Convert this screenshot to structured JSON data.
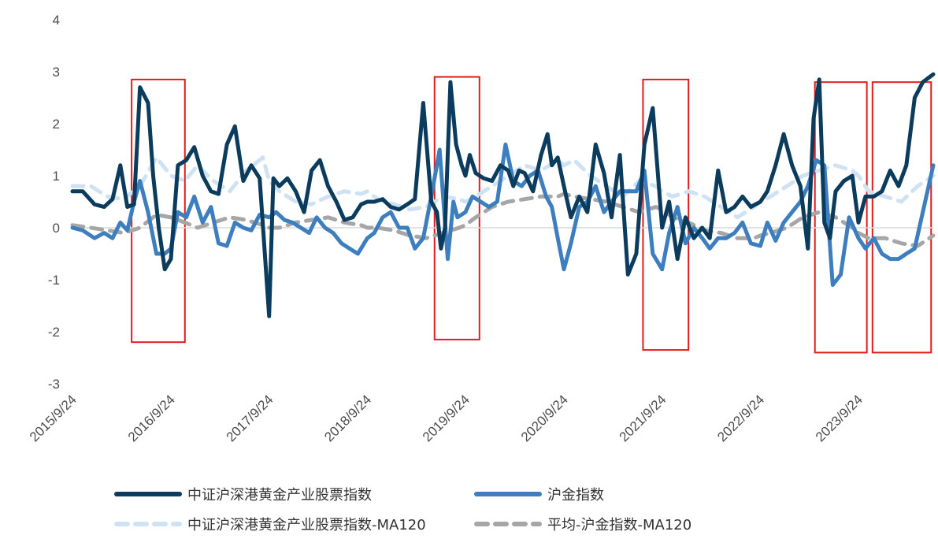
{
  "chart_data": {
    "type": "line",
    "ylim": [
      -3,
      4
    ],
    "yticks": [
      -3,
      -2,
      -1,
      0,
      1,
      2,
      3,
      4
    ],
    "ytick_labels": [
      "-3",
      "-2",
      "-1",
      "0",
      "1",
      "2",
      "3",
      "4"
    ],
    "xlim": [
      "2015/9/24",
      "2024/6/28"
    ],
    "xticks": [
      "2015/9/24",
      "2016/9/24",
      "2017/9/24",
      "2018/9/24",
      "2019/9/24",
      "2020/9/24",
      "2021/9/24",
      "2022/9/24",
      "2023/9/24"
    ],
    "grid": false,
    "legend_position": "bottom",
    "series": [
      {
        "name": "中证沪深港黄金产业股票指数",
        "color": "#0b3c5d",
        "style": "solid",
        "x": [
          "2015/9/24",
          "2015/11/1",
          "2015/12/15",
          "2016/1/20",
          "2016/2/20",
          "2016/3/20",
          "2016/4/15",
          "2016/5/10",
          "2016/6/1",
          "2016/7/1",
          "2016/7/20",
          "2016/8/10",
          "2016/9/1",
          "2016/9/24",
          "2016/10/20",
          "2016/11/20",
          "2016/12/20",
          "2017/1/20",
          "2017/2/20",
          "2017/3/20",
          "2017/4/20",
          "2017/5/20",
          "2017/6/20",
          "2017/7/20",
          "2017/8/20",
          "2017/9/24",
          "2017/10/10",
          "2017/11/1",
          "2017/12/1",
          "2018/1/1",
          "2018/2/1",
          "2018/3/1",
          "2018/4/1",
          "2018/5/1",
          "2018/6/1",
          "2018/7/1",
          "2018/8/1",
          "2018/9/1",
          "2018/9/24",
          "2018/10/20",
          "2018/11/20",
          "2018/12/20",
          "2019/1/20",
          "2019/2/20",
          "2019/3/20",
          "2019/4/20",
          "2019/5/20",
          "2019/6/10",
          "2019/6/25",
          "2019/7/10",
          "2019/7/30",
          "2019/8/20",
          "2019/9/10",
          "2019/9/24",
          "2019/10/10",
          "2019/11/1",
          "2019/12/1",
          "2020/1/1",
          "2020/2/1",
          "2020/3/1",
          "2020/3/20",
          "2020/4/10",
          "2020/5/1",
          "2020/6/1",
          "2020/7/1",
          "2020/7/25",
          "2020/8/10",
          "2020/9/1",
          "2020/9/24",
          "2020/10/20",
          "2020/11/20",
          "2020/12/20",
          "2021/1/20",
          "2021/2/20",
          "2021/3/20",
          "2021/4/20",
          "2021/5/20",
          "2021/6/20",
          "2021/7/20",
          "2021/8/20",
          "2021/9/24",
          "2021/10/20",
          "2021/11/20",
          "2021/12/20",
          "2022/1/20",
          "2022/2/20",
          "2022/3/20",
          "2022/4/20",
          "2022/5/20",
          "2022/6/20",
          "2022/7/20",
          "2022/8/20",
          "2022/9/24",
          "2022/10/20",
          "2022/11/20",
          "2022/12/20",
          "2023/1/20",
          "2023/2/20",
          "2023/3/20",
          "2023/4/10",
          "2023/5/1",
          "2023/5/20",
          "2023/6/10",
          "2023/7/1",
          "2023/8/1",
          "2023/9/1",
          "2023/9/24",
          "2023/10/20",
          "2023/11/20",
          "2023/12/20",
          "2024/1/20",
          "2024/2/20",
          "2024/3/20",
          "2024/4/20",
          "2024/5/20",
          "2024/6/28"
        ],
        "y": [
          0.7,
          0.7,
          0.45,
          0.4,
          0.55,
          1.2,
          0.4,
          0.45,
          2.7,
          2.4,
          1.0,
          0.0,
          -0.8,
          -0.6,
          1.2,
          1.3,
          1.55,
          1.0,
          0.7,
          0.65,
          1.6,
          1.95,
          0.9,
          1.2,
          0.95,
          -1.7,
          0.95,
          0.8,
          0.95,
          0.7,
          0.3,
          1.1,
          1.3,
          0.8,
          0.5,
          0.15,
          0.2,
          0.45,
          0.5,
          0.5,
          0.55,
          0.4,
          0.35,
          0.45,
          0.55,
          2.4,
          0.5,
          0.3,
          -0.4,
          0.0,
          2.8,
          1.6,
          1.2,
          1.0,
          1.4,
          1.05,
          0.95,
          0.9,
          1.2,
          1.1,
          0.8,
          1.1,
          1.05,
          0.7,
          1.4,
          1.8,
          1.2,
          1.35,
          0.8,
          0.2,
          0.6,
          0.3,
          1.6,
          1.05,
          0.2,
          1.4,
          -0.9,
          -0.5,
          1.6,
          2.3,
          0.0,
          0.5,
          -0.6,
          0.2,
          -0.2,
          0.0,
          -0.2,
          1.1,
          0.3,
          0.4,
          0.6,
          0.4,
          0.5,
          0.7,
          1.2,
          1.8,
          1.2,
          0.8,
          -0.4,
          2.1,
          2.85,
          0.1,
          -0.2,
          0.7,
          0.9,
          1.0,
          0.1,
          0.6,
          0.6,
          0.7,
          1.1,
          0.8,
          1.2,
          2.5,
          2.8,
          2.95
        ]
      },
      {
        "name": "沪金指数",
        "color": "#3d7ebf",
        "style": "solid",
        "x": [
          "2015/9/24",
          "2015/11/1",
          "2015/12/15",
          "2016/1/20",
          "2016/2/20",
          "2016/3/20",
          "2016/4/15",
          "2016/5/10",
          "2016/6/1",
          "2016/7/1",
          "2016/8/1",
          "2016/9/1",
          "2016/9/24",
          "2016/10/20",
          "2016/11/20",
          "2016/12/20",
          "2017/1/20",
          "2017/2/20",
          "2017/3/20",
          "2017/4/20",
          "2017/5/20",
          "2017/6/20",
          "2017/7/20",
          "2017/8/20",
          "2017/9/24",
          "2017/10/20",
          "2017/11/20",
          "2017/12/20",
          "2018/1/20",
          "2018/2/20",
          "2018/3/20",
          "2018/4/20",
          "2018/5/20",
          "2018/6/20",
          "2018/7/20",
          "2018/8/20",
          "2018/9/24",
          "2018/10/20",
          "2018/11/20",
          "2018/12/20",
          "2019/1/20",
          "2019/2/20",
          "2019/3/20",
          "2019/4/20",
          "2019/5/20",
          "2019/6/20",
          "2019/7/20",
          "2019/8/10",
          "2019/8/25",
          "2019/9/24",
          "2019/10/20",
          "2019/11/20",
          "2019/12/20",
          "2020/1/20",
          "2020/2/20",
          "2020/3/20",
          "2020/4/20",
          "2020/5/20",
          "2020/6/20",
          "2020/7/20",
          "2020/8/10",
          "2020/9/1",
          "2020/9/24",
          "2020/10/20",
          "2020/11/20",
          "2020/12/20",
          "2021/1/20",
          "2021/2/20",
          "2021/3/20",
          "2021/4/20",
          "2021/5/20",
          "2021/6/20",
          "2021/7/20",
          "2021/8/20",
          "2021/9/24",
          "2021/10/20",
          "2021/11/20",
          "2021/12/20",
          "2022/1/20",
          "2022/2/20",
          "2022/3/20",
          "2022/4/20",
          "2022/5/20",
          "2022/6/20",
          "2022/7/20",
          "2022/8/20",
          "2022/9/24",
          "2022/10/20",
          "2022/11/20",
          "2022/12/20",
          "2023/1/20",
          "2023/2/20",
          "2023/3/20",
          "2023/4/20",
          "2023/5/20",
          "2023/6/20",
          "2023/7/20",
          "2023/8/20",
          "2023/9/24",
          "2023/10/20",
          "2023/11/20",
          "2023/12/20",
          "2024/1/20",
          "2024/2/20",
          "2024/3/20",
          "2024/4/20",
          "2024/5/20",
          "2024/6/28"
        ],
        "y": [
          0.0,
          -0.05,
          -0.2,
          -0.1,
          -0.2,
          0.1,
          -0.05,
          0.5,
          0.9,
          0.3,
          -0.5,
          -0.5,
          -0.4,
          0.3,
          0.2,
          0.6,
          0.1,
          0.4,
          -0.3,
          -0.35,
          0.1,
          0.0,
          -0.05,
          0.25,
          0.2,
          0.3,
          0.15,
          0.1,
          0.0,
          -0.1,
          0.2,
          0.0,
          -0.1,
          -0.3,
          -0.4,
          -0.5,
          -0.2,
          -0.1,
          0.2,
          0.3,
          0.0,
          0.0,
          -0.4,
          -0.2,
          0.6,
          1.5,
          -0.6,
          0.5,
          0.2,
          0.3,
          0.6,
          0.5,
          0.4,
          0.5,
          1.6,
          0.9,
          0.8,
          1.0,
          1.1,
          0.6,
          0.4,
          -0.2,
          -0.8,
          -0.3,
          0.4,
          0.5,
          0.8,
          0.3,
          0.5,
          0.7,
          0.7,
          0.7,
          1.1,
          -0.5,
          -0.8,
          -0.1,
          0.4,
          -0.3,
          0.0,
          -0.2,
          -0.4,
          -0.2,
          -0.2,
          -0.1,
          0.1,
          -0.3,
          -0.35,
          0.1,
          -0.25,
          0.1,
          0.3,
          0.5,
          0.8,
          1.3,
          1.2,
          -1.1,
          -0.9,
          0.2,
          -0.2,
          -0.4,
          -0.2,
          -0.5,
          -0.6,
          -0.6,
          -0.5,
          -0.4,
          0.3,
          1.2
        ]
      },
      {
        "name": "中证沪深港黄金产业股票指数-MA120",
        "color": "#cfe2f3",
        "style": "dashed",
        "x": [
          "2015/9/24",
          "2015/12/1",
          "2016/2/1",
          "2016/4/1",
          "2016/6/1",
          "2016/8/1",
          "2016/9/24",
          "2016/11/15",
          "2017/1/1",
          "2017/3/1",
          "2017/5/1",
          "2017/7/1",
          "2017/9/1",
          "2017/9/24",
          "2017/11/1",
          "2018/1/1",
          "2018/3/1",
          "2018/5/1",
          "2018/7/1",
          "2018/9/1",
          "2018/9/24",
          "2018/11/1",
          "2019/1/1",
          "2019/3/1",
          "2019/5/1",
          "2019/7/1",
          "2019/9/1",
          "2019/9/24",
          "2019/11/1",
          "2020/1/1",
          "2020/3/1",
          "2020/5/1",
          "2020/7/1",
          "2020/9/1",
          "2020/9/24",
          "2020/11/1",
          "2021/1/1",
          "2021/3/1",
          "2021/5/1",
          "2021/7/1",
          "2021/9/1",
          "2021/9/24",
          "2021/11/1",
          "2022/1/1",
          "2022/3/1",
          "2022/5/1",
          "2022/7/1",
          "2022/9/1",
          "2022/9/24",
          "2022/11/1",
          "2023/1/1",
          "2023/3/1",
          "2023/5/1",
          "2023/7/1",
          "2023/9/1",
          "2023/9/24",
          "2023/11/1",
          "2024/1/1",
          "2024/3/1",
          "2024/5/1",
          "2024/6/28"
        ],
        "y": [
          0.8,
          0.8,
          0.6,
          0.55,
          0.8,
          1.35,
          1.0,
          0.9,
          1.2,
          0.9,
          0.7,
          1.1,
          1.35,
          0.9,
          0.7,
          0.5,
          0.45,
          0.6,
          0.7,
          0.65,
          0.7,
          0.55,
          0.45,
          0.35,
          0.4,
          0.6,
          0.55,
          0.5,
          0.6,
          0.8,
          1.0,
          1.2,
          1.1,
          1.3,
          1.2,
          1.3,
          1.0,
          0.8,
          0.6,
          0.9,
          0.8,
          0.7,
          0.6,
          0.7,
          0.6,
          0.4,
          0.2,
          0.4,
          0.5,
          0.6,
          0.8,
          1.0,
          1.1,
          1.2,
          1.1,
          1.0,
          0.7,
          0.6,
          0.5,
          0.8,
          1.0
        ]
      },
      {
        "name": "平均-沪金指数-MA120",
        "color": "#a6a6a6",
        "style": "dashed",
        "x": [
          "2015/9/24",
          "2015/12/1",
          "2016/2/1",
          "2016/4/1",
          "2016/6/1",
          "2016/8/1",
          "2016/9/24",
          "2016/11/15",
          "2017/1/1",
          "2017/3/1",
          "2017/5/1",
          "2017/7/1",
          "2017/9/1",
          "2017/9/24",
          "2017/11/1",
          "2018/1/1",
          "2018/3/1",
          "2018/5/1",
          "2018/7/1",
          "2018/9/1",
          "2018/9/24",
          "2018/11/1",
          "2019/1/1",
          "2019/3/1",
          "2019/5/1",
          "2019/7/1",
          "2019/9/1",
          "2019/9/24",
          "2019/11/1",
          "2020/1/1",
          "2020/3/1",
          "2020/5/1",
          "2020/7/1",
          "2020/9/1",
          "2020/9/24",
          "2020/11/1",
          "2021/1/1",
          "2021/3/1",
          "2021/5/1",
          "2021/7/1",
          "2021/9/1",
          "2021/9/24",
          "2021/11/1",
          "2022/1/1",
          "2022/3/1",
          "2022/5/1",
          "2022/7/1",
          "2022/9/1",
          "2022/9/24",
          "2022/11/1",
          "2023/1/1",
          "2023/3/1",
          "2023/5/1",
          "2023/7/1",
          "2023/9/1",
          "2023/9/24",
          "2023/11/1",
          "2024/1/1",
          "2024/3/1",
          "2024/5/1",
          "2024/6/28"
        ],
        "y": [
          0.05,
          0.0,
          -0.05,
          -0.1,
          0.0,
          0.25,
          0.2,
          0.1,
          0.0,
          0.1,
          0.2,
          0.15,
          0.05,
          0.0,
          0.0,
          0.1,
          0.15,
          0.2,
          0.1,
          0.05,
          0.0,
          0.0,
          -0.05,
          -0.15,
          -0.2,
          -0.1,
          0.0,
          0.05,
          0.2,
          0.4,
          0.5,
          0.55,
          0.6,
          0.6,
          0.65,
          0.6,
          0.55,
          0.5,
          0.4,
          0.3,
          0.4,
          0.35,
          0.2,
          0.1,
          -0.05,
          -0.1,
          -0.2,
          -0.2,
          -0.15,
          -0.1,
          0.0,
          0.2,
          0.3,
          0.2,
          0.0,
          -0.1,
          -0.2,
          -0.2,
          -0.3,
          -0.35,
          -0.15
        ]
      }
    ],
    "highlight_boxes": [
      {
        "x_start": "2016/5/1",
        "x_end": "2016/11/15",
        "y_top": 2.85,
        "y_bottom": -2.2
      },
      {
        "x_start": "2019/6/1",
        "x_end": "2019/11/15",
        "y_top": 2.9,
        "y_bottom": -2.15
      },
      {
        "x_start": "2021/7/15",
        "x_end": "2021/12/31",
        "y_top": 2.85,
        "y_bottom": -2.35
      },
      {
        "x_start": "2023/4/15",
        "x_end": "2023/10/25",
        "y_top": 2.8,
        "y_bottom": -2.4
      },
      {
        "x_start": "2023/11/15",
        "x_end": "2024/6/20",
        "y_top": 2.8,
        "y_bottom": -2.4
      }
    ],
    "highlight_color": "#e41a1c"
  }
}
